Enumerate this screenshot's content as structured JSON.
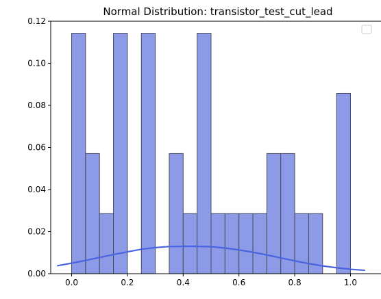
{
  "chart_data": {
    "type": "bar",
    "title": "Normal Distribution: transistor_test_cut_lead",
    "xlabel": "",
    "ylabel": "",
    "xlim": [
      -0.075,
      1.075
    ],
    "ylim": [
      0,
      0.12
    ],
    "grid": false,
    "legend": {
      "placement": "top-right",
      "entries": []
    },
    "x_ticks": [
      "0.0",
      "0.2",
      "0.4",
      "0.6",
      "0.8",
      "1.0"
    ],
    "y_ticks": [
      "0.00",
      "0.02",
      "0.04",
      "0.06",
      "0.08",
      "0.10",
      "0.12"
    ],
    "histogram": {
      "bin_width": 0.05,
      "bin_edges_start": 0.0,
      "values": [
        0.1143,
        0.0571,
        0.0286,
        0.1143,
        0.0,
        0.1143,
        0.0,
        0.0571,
        0.0286,
        0.1143,
        0.0286,
        0.0286,
        0.0286,
        0.0286,
        0.0571,
        0.0571,
        0.0286,
        0.0286,
        0.0,
        0.0857
      ],
      "fill_color": "#8c9ae8",
      "edge_color": "#4a4a5a"
    },
    "curve": {
      "x": [
        -0.05,
        0.0,
        0.05,
        0.1,
        0.15,
        0.2,
        0.25,
        0.3,
        0.35,
        0.4,
        0.45,
        0.5,
        0.55,
        0.6,
        0.65,
        0.7,
        0.75,
        0.8,
        0.85,
        0.9,
        0.95,
        1.0,
        1.05
      ],
      "y": [
        0.0038,
        0.005,
        0.0063,
        0.0077,
        0.0091,
        0.0104,
        0.0116,
        0.0124,
        0.0129,
        0.013,
        0.013,
        0.0128,
        0.0122,
        0.0113,
        0.0102,
        0.0089,
        0.0075,
        0.0061,
        0.0048,
        0.0037,
        0.0028,
        0.0021,
        0.0016
      ],
      "color": "#4a63e0"
    }
  }
}
